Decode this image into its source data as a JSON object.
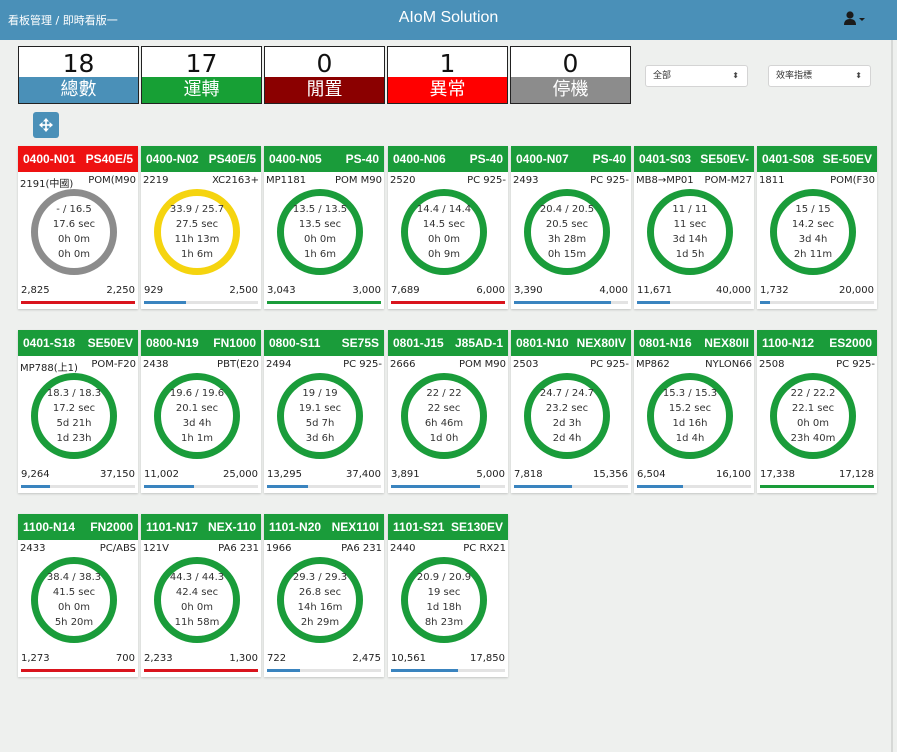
{
  "navbar": {
    "breadcrumb": "看板管理 / 即時看版一",
    "title": "AIoM Solution",
    "user_icon": "user-icon",
    "color": "#4a90b8"
  },
  "stats": [
    {
      "value": "18",
      "label": "總數",
      "color": "#4a90b8"
    },
    {
      "value": "17",
      "label": "運轉",
      "color": "#17a035"
    },
    {
      "value": "0",
      "label": "閒置",
      "color": "#8b0000"
    },
    {
      "value": "1",
      "label": "異常",
      "color": "#ff0000"
    },
    {
      "value": "0",
      "label": "停機",
      "color": "#8c8c8c"
    }
  ],
  "filters": {
    "group_select": "全部",
    "metric_select": "效率指標"
  },
  "move_button_icon": "move-arrows-icon",
  "colors": {
    "running": "#1a9c3a",
    "abnormal": "#ee1111",
    "ring_gray": "#8c8c8c",
    "ring_yellow": "#f5d40f",
    "bar_blue": "#3a84bf",
    "bar_red": "#d9141d",
    "bar_green": "#1a9c3a"
  },
  "machines": [
    {
      "id": "0400-N01",
      "model": "PS40E/5",
      "status": "abnormal",
      "ring": "gray",
      "job": "2191(中國)",
      "material": "POM(M90",
      "cycle": "- / 16.5",
      "avg": "17.6 sec",
      "run": "0h 0m",
      "remain": "0h 0m",
      "qty_done": "2,825",
      "qty_target": "2,250",
      "progress": 1.0,
      "bar": "red"
    },
    {
      "id": "0400-N02",
      "model": "PS40E/5",
      "status": "running",
      "ring": "yellow",
      "job": "2219",
      "material": "XC2163+",
      "cycle": "33.9 / 25.7",
      "avg": "27.5 sec",
      "run": "11h 13m",
      "remain": "1h 6m",
      "qty_done": "929",
      "qty_target": "2,500",
      "progress": 0.37,
      "bar": "blue"
    },
    {
      "id": "0400-N05",
      "model": "PS-40",
      "status": "running",
      "ring": "green",
      "job": "MP1181",
      "material": "POM M90",
      "cycle": "13.5 / 13.5",
      "avg": "13.5 sec",
      "run": "0h 0m",
      "remain": "1h 6m",
      "qty_done": "3,043",
      "qty_target": "3,000",
      "progress": 1.0,
      "bar": "green"
    },
    {
      "id": "0400-N06",
      "model": "PS-40",
      "status": "running",
      "ring": "green",
      "job": "2520",
      "material": "PC 925-",
      "cycle": "14.4 / 14.4",
      "avg": "14.5 sec",
      "run": "0h 0m",
      "remain": "0h 9m",
      "qty_done": "7,689",
      "qty_target": "6,000",
      "progress": 1.0,
      "bar": "red"
    },
    {
      "id": "0400-N07",
      "model": "PS-40",
      "status": "running",
      "ring": "green",
      "job": "2493",
      "material": "PC 925-",
      "cycle": "20.4 / 20.5",
      "avg": "20.5 sec",
      "run": "3h 28m",
      "remain": "0h 15m",
      "qty_done": "3,390",
      "qty_target": "4,000",
      "progress": 0.85,
      "bar": "blue"
    },
    {
      "id": "0401-S03",
      "model": "SE50EV-",
      "status": "running",
      "ring": "green",
      "job": "MB8→MP01",
      "material": "POM-M27",
      "cycle": "11 / 11",
      "avg": "11 sec",
      "run": "3d 14h",
      "remain": "1d 5h",
      "qty_done": "11,671",
      "qty_target": "40,000",
      "progress": 0.29,
      "bar": "blue"
    },
    {
      "id": "0401-S08",
      "model": "SE-50EV",
      "status": "running",
      "ring": "green",
      "job": "1811",
      "material": "POM(F30",
      "cycle": "15 / 15",
      "avg": "14.2 sec",
      "run": "3d 4h",
      "remain": "2h 11m",
      "qty_done": "1,732",
      "qty_target": "20,000",
      "progress": 0.09,
      "bar": "blue"
    },
    {
      "id": "0401-S18",
      "model": "SE50EV",
      "status": "running",
      "ring": "green",
      "job": "MP788(上1)",
      "material": "POM-F20",
      "cycle": "18.3 / 18.3",
      "avg": "17.2 sec",
      "run": "5d 21h",
      "remain": "1d 23h",
      "qty_done": "9,264",
      "qty_target": "37,150",
      "progress": 0.25,
      "bar": "blue"
    },
    {
      "id": "0800-N19",
      "model": "FN1000",
      "status": "running",
      "ring": "green",
      "job": "2438",
      "material": "PBT(E20",
      "cycle": "19.6 / 19.6",
      "avg": "20.1 sec",
      "run": "3d 4h",
      "remain": "1h 1m",
      "qty_done": "11,002",
      "qty_target": "25,000",
      "progress": 0.44,
      "bar": "blue"
    },
    {
      "id": "0800-S11",
      "model": "SE75S",
      "status": "running",
      "ring": "green",
      "job": "2494",
      "material": "PC 925-",
      "cycle": "19 / 19",
      "avg": "19.1 sec",
      "run": "5d 7h",
      "remain": "3d 6h",
      "qty_done": "13,295",
      "qty_target": "37,400",
      "progress": 0.36,
      "bar": "blue"
    },
    {
      "id": "0801-J15",
      "model": "J85AD-1",
      "status": "running",
      "ring": "green",
      "job": "2666",
      "material": "POM M90",
      "cycle": "22 / 22",
      "avg": "22 sec",
      "run": "6h 46m",
      "remain": "1d 0h",
      "qty_done": "3,891",
      "qty_target": "5,000",
      "progress": 0.78,
      "bar": "blue"
    },
    {
      "id": "0801-N10",
      "model": "NEX80IV",
      "status": "running",
      "ring": "green",
      "job": "2503",
      "material": "PC 925-",
      "cycle": "24.7 / 24.7",
      "avg": "23.2 sec",
      "run": "2d 3h",
      "remain": "2d 4h",
      "qty_done": "7,818",
      "qty_target": "15,356",
      "progress": 0.51,
      "bar": "blue"
    },
    {
      "id": "0801-N16",
      "model": "NEX80II",
      "status": "running",
      "ring": "green",
      "job": "MP862",
      "material": "NYLON66",
      "cycle": "15.3 / 15.3",
      "avg": "15.2 sec",
      "run": "1d 16h",
      "remain": "1d 4h",
      "qty_done": "6,504",
      "qty_target": "16,100",
      "progress": 0.4,
      "bar": "blue"
    },
    {
      "id": "1100-N12",
      "model": "ES2000",
      "status": "running",
      "ring": "green",
      "job": "2508",
      "material": "PC 925-",
      "cycle": "22 / 22.2",
      "avg": "22.1 sec",
      "run": "0h 0m",
      "remain": "23h 40m",
      "qty_done": "17,338",
      "qty_target": "17,128",
      "progress": 1.0,
      "bar": "green"
    },
    {
      "id": "1100-N14",
      "model": "FN2000",
      "status": "running",
      "ring": "green",
      "job": "2433",
      "material": "PC/ABS",
      "cycle": "38.4 / 38.3",
      "avg": "41.5 sec",
      "run": "0h 0m",
      "remain": "5h 20m",
      "qty_done": "1,273",
      "qty_target": "700",
      "progress": 1.0,
      "bar": "red"
    },
    {
      "id": "1101-N17",
      "model": "NEX-110",
      "status": "running",
      "ring": "green",
      "job": "121V",
      "material": "PA6 231",
      "cycle": "44.3 / 44.3",
      "avg": "42.4 sec",
      "run": "0h 0m",
      "remain": "11h 58m",
      "qty_done": "2,233",
      "qty_target": "1,300",
      "progress": 1.0,
      "bar": "red"
    },
    {
      "id": "1101-N20",
      "model": "NEX110I",
      "status": "running",
      "ring": "green",
      "job": "1966",
      "material": "PA6 231",
      "cycle": "29.3 / 29.3",
      "avg": "26.8 sec",
      "run": "14h 16m",
      "remain": "2h 29m",
      "qty_done": "722",
      "qty_target": "2,475",
      "progress": 0.29,
      "bar": "blue"
    },
    {
      "id": "1101-S21",
      "model": "SE130EV",
      "status": "running",
      "ring": "green",
      "job": "2440",
      "material": "PC RX21",
      "cycle": "20.9 / 20.9",
      "avg": "19 sec",
      "run": "1d 18h",
      "remain": "8h 23m",
      "qty_done": "10,561",
      "qty_target": "17,850",
      "progress": 0.59,
      "bar": "blue"
    }
  ]
}
